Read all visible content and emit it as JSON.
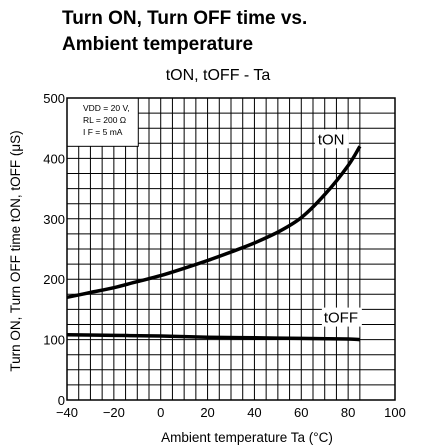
{
  "page": {
    "title_line1": "Turn ON, Turn OFF time vs.",
    "title_line2": "Ambient temperature"
  },
  "chart_data": {
    "type": "line",
    "title": "Turn ON, Turn OFF time vs. Ambient temperature",
    "subtitle": "tON, tOFF - Ta",
    "xlabel": "Ambient temperature Ta (°C)",
    "ylabel": "Turn ON, Turn OFF time tON, tOFF (μS)",
    "xlim": [
      -40,
      100
    ],
    "ylim": [
      0,
      500
    ],
    "x_ticks": [
      "−40",
      "−20",
      "0",
      "20",
      "40",
      "60",
      "80",
      "100"
    ],
    "y_ticks": [
      "0",
      "100",
      "200",
      "300",
      "400",
      "500"
    ],
    "grid": true,
    "conditions": [
      "VDD = 20 V,",
      "RL = 200 Ω",
      "I F = 5 mA"
    ],
    "series": [
      {
        "name": "tON",
        "x": [
          -40,
          -30,
          -20,
          -10,
          0,
          10,
          20,
          30,
          40,
          50,
          60,
          70,
          80,
          85
        ],
        "y": [
          170,
          178,
          186,
          196,
          206,
          218,
          231,
          245,
          260,
          278,
          302,
          340,
          388,
          420
        ]
      },
      {
        "name": "tOFF",
        "x": [
          -40,
          -20,
          0,
          20,
          40,
          60,
          80,
          85
        ],
        "y": [
          108,
          107,
          106,
          104,
          103,
          102,
          101,
          100
        ]
      }
    ]
  }
}
